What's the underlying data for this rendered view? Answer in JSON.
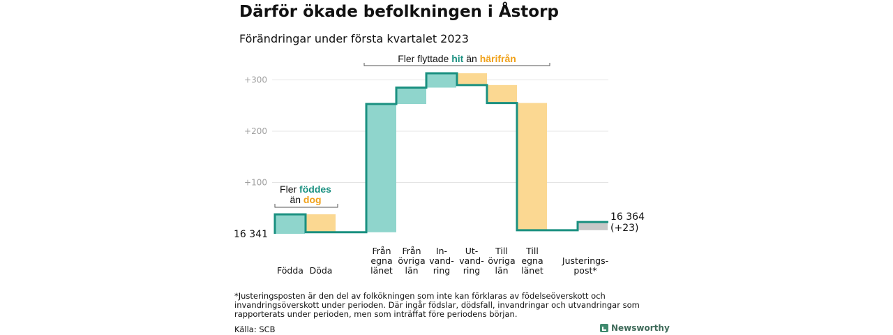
{
  "title": "Därför ökade befolkningen i Åstorp",
  "subtitle": "Förändringar under första kvartalet 2023",
  "chart_data": {
    "type": "waterfall",
    "start_label": "16 341",
    "end_label": "16 364",
    "end_change_label": "(+23)",
    "yticks": [
      "+100",
      "+200",
      "+300"
    ],
    "ylim": [
      0,
      330
    ],
    "steps": [
      {
        "name": "birth",
        "label": "Födda",
        "value": 38,
        "color": "teal"
      },
      {
        "name": "death",
        "label": "Döda",
        "value": -35,
        "color": "orange"
      },
      {
        "name": "in-county",
        "label": "Från\negna\nlänet",
        "value": 250,
        "color": "teal"
      },
      {
        "name": "in-other-counties",
        "label": "Från\növriga\nlän",
        "value": 32,
        "color": "teal"
      },
      {
        "name": "immigration",
        "label": "In-\nvand-\nring",
        "value": 28,
        "color": "teal"
      },
      {
        "name": "emigration",
        "label": "Ut-\nvand-\nring",
        "value": -23,
        "color": "orange"
      },
      {
        "name": "out-other-counties",
        "label": "Till\növriga\nlän",
        "value": -35,
        "color": "orange"
      },
      {
        "name": "out-county",
        "label": "Till\negna\nlänet",
        "value": -248,
        "color": "orange"
      },
      {
        "name": "adjustment",
        "label": "Justerings-\npost*",
        "value": 16,
        "color": "gray"
      }
    ],
    "annotation_births": {
      "prefix": "Fler ",
      "em1": "föddes",
      "line2_prefix": "än ",
      "em2": "dog"
    },
    "annotation_moves": {
      "prefix": "Fler flyttade ",
      "em1": "hit",
      "mid": " än ",
      "em2": "härifrån"
    }
  },
  "colors": {
    "teal": "#8fd5cc",
    "orange": "#fbd892",
    "gray": "#c8c8c8",
    "line": "#1a9080",
    "em1": "#1a9080",
    "em2": "#f0a11a",
    "grid": "#e4e4e4",
    "tick": "#a0a0a0"
  },
  "footnote": "*Justeringsposten är den del av folkökningen som inte kan förklaras av födelseöverskott och invandringsöverskott under perioden. Där ingår födslar, dödsfall, invandringar och utvandringar som rapporterats under perioden, men som inträffat före periodens början.",
  "source": "Källa: SCB",
  "brand": "Newsworthy"
}
